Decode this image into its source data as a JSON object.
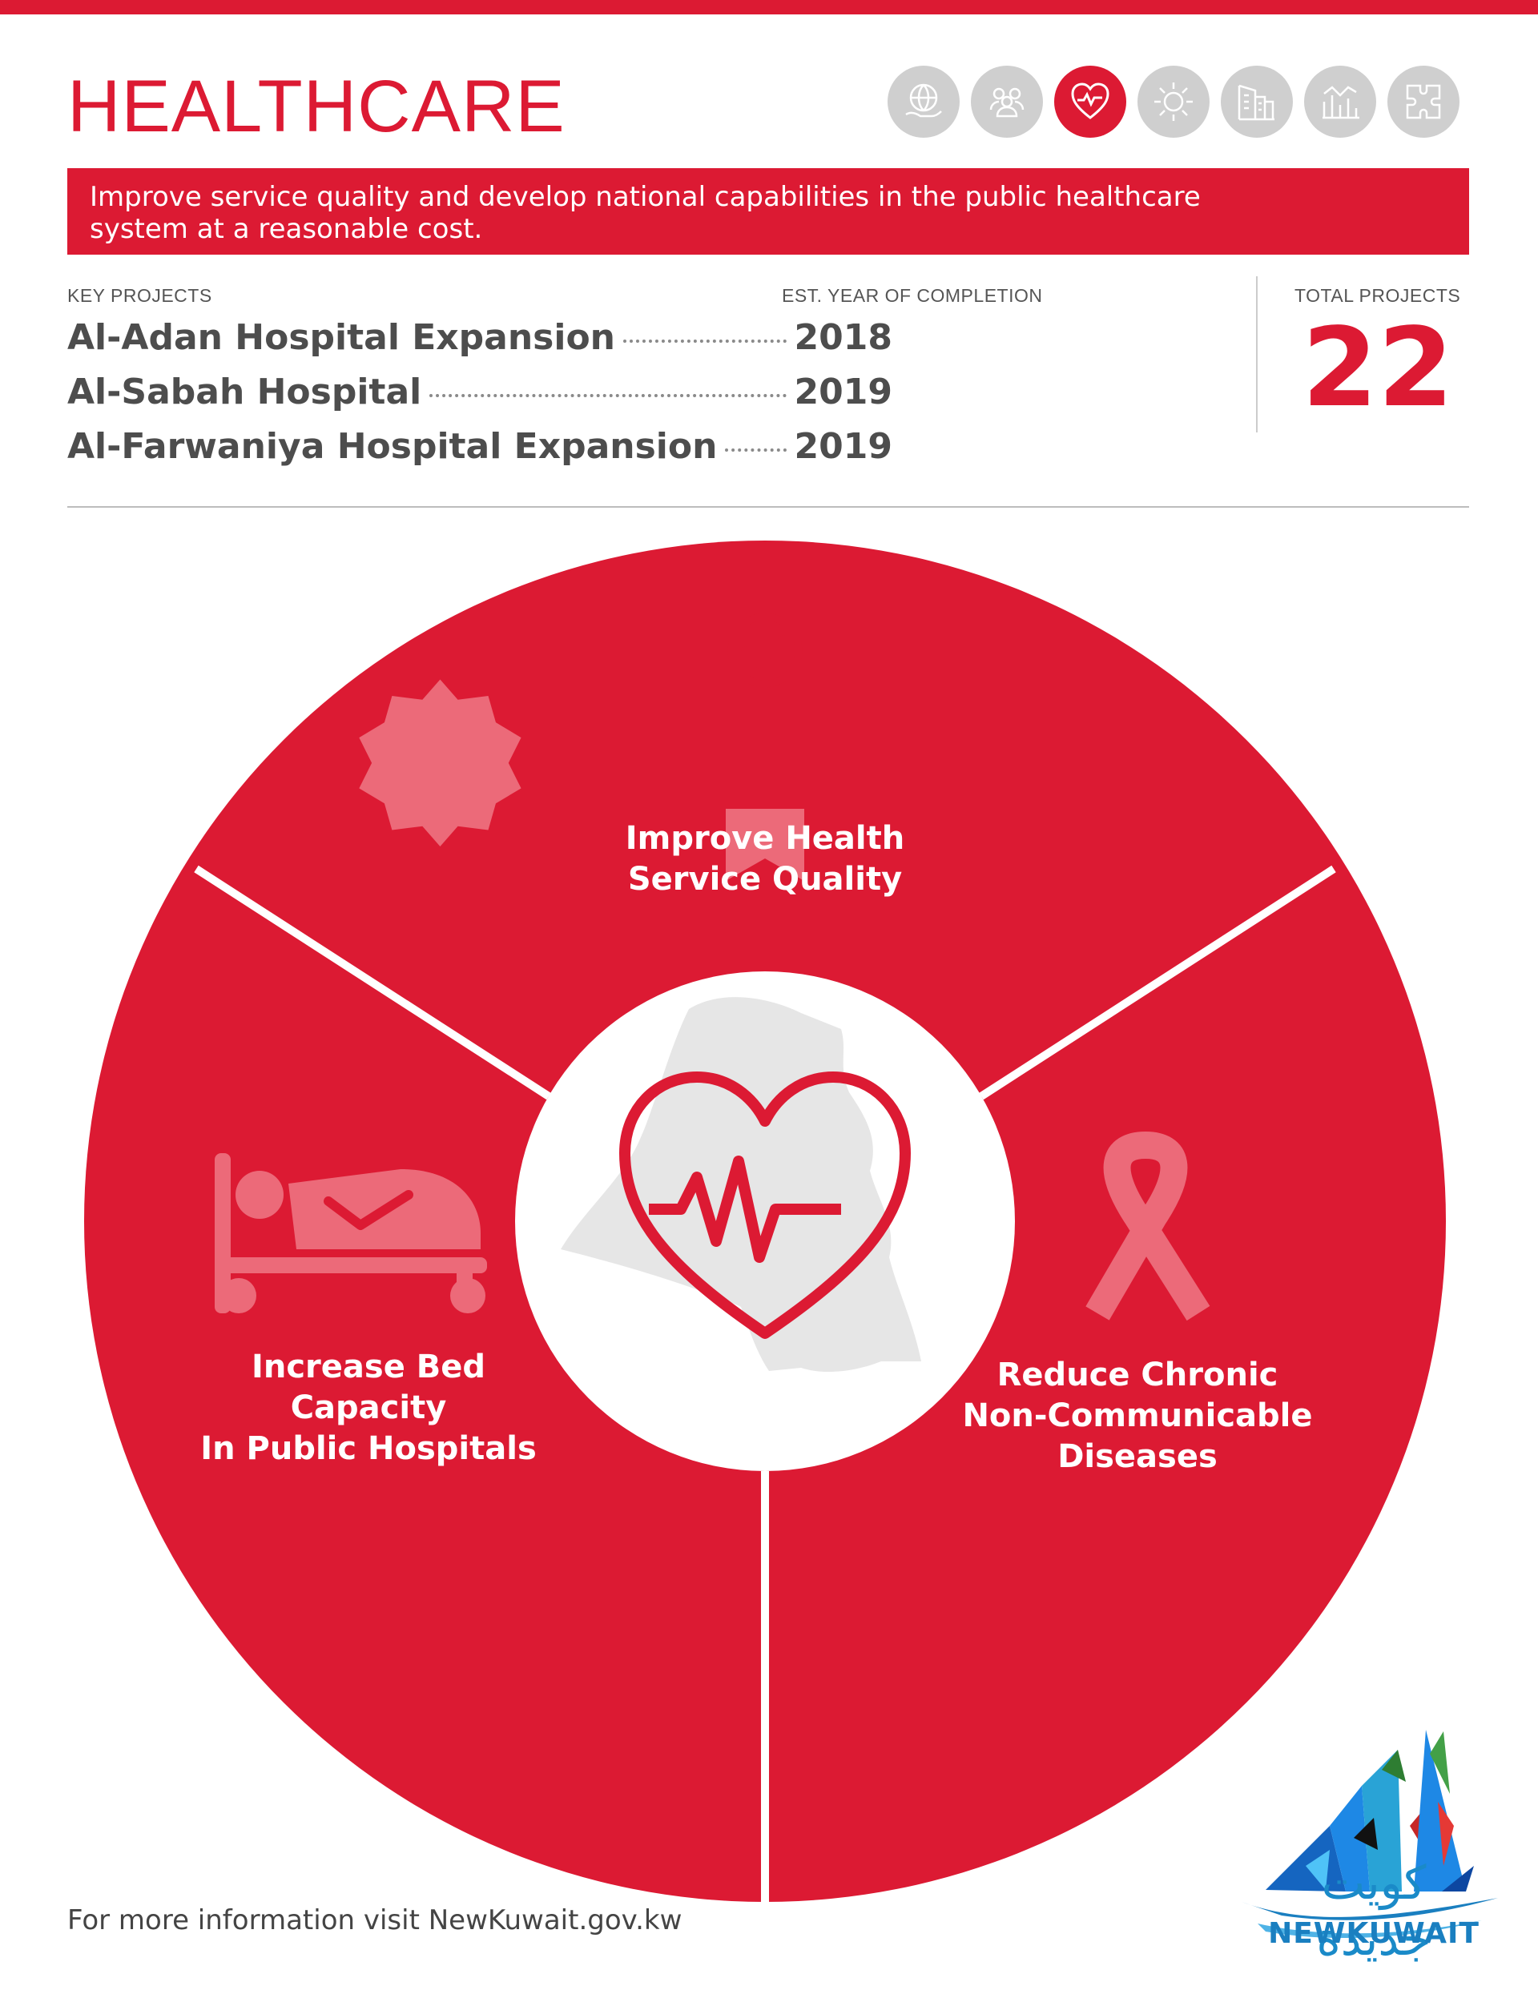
{
  "header": {
    "title": "HEALTHCARE",
    "category_icons": [
      {
        "name": "global-hand-icon",
        "active": false
      },
      {
        "name": "people-icon",
        "active": false
      },
      {
        "name": "heart-pulse-icon",
        "active": true
      },
      {
        "name": "sun-icon",
        "active": false
      },
      {
        "name": "city-icon",
        "active": false
      },
      {
        "name": "growth-chart-icon",
        "active": false
      },
      {
        "name": "puzzle-icon",
        "active": false
      }
    ]
  },
  "banner": {
    "text": "Improve service quality and develop national capabilities in the public healthcare system at a reasonable cost."
  },
  "key_projects": {
    "label": "KEY PROJECTS",
    "year_label": "EST. YEAR OF COMPLETION",
    "items": [
      {
        "name": "Al-Adan Hospital Expansion",
        "year": "2018"
      },
      {
        "name": "Al-Sabah Hospital",
        "year": "2019"
      },
      {
        "name": "Al-Farwaniya Hospital Expansion",
        "year": "2019"
      }
    ]
  },
  "total_projects": {
    "label": "TOTAL PROJECTS",
    "value": "22"
  },
  "wheel": {
    "center_icon": "heart-pulse-icon",
    "segments": [
      {
        "icon": "award-ribbon-icon",
        "line1": "Improve Health",
        "line2": "Service Quality",
        "line3": ""
      },
      {
        "icon": "hospital-bed-icon",
        "line1": "Increase Bed",
        "line2": "Capacity",
        "line3": "In Public Hospitals"
      },
      {
        "icon": "awareness-ribbon-icon",
        "line1": "Reduce Chronic",
        "line2": "Non-Communicable",
        "line3": "Diseases"
      }
    ]
  },
  "footer": {
    "text": "For more information visit NewKuwait.gov.kw"
  },
  "logo": {
    "arabic": "كويت جديدة",
    "text": "NEWKUWAIT"
  },
  "colors": {
    "accent": "#dc1a33",
    "icon_gray": "#cfcfcf",
    "logo_blue": "#1a7fc0"
  }
}
